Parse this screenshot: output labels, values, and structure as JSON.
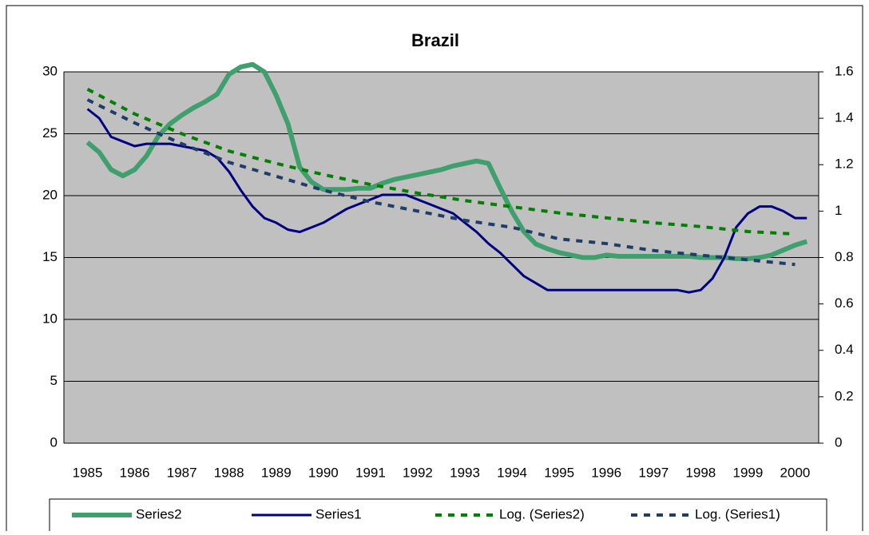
{
  "chart_data": {
    "type": "line",
    "title": "Brazil",
    "x": [
      1985,
      1985.25,
      1985.5,
      1985.75,
      1986,
      1986.25,
      1986.5,
      1986.75,
      1987,
      1987.25,
      1987.5,
      1987.75,
      1988,
      1988.25,
      1988.5,
      1988.75,
      1989,
      1989.25,
      1989.5,
      1989.75,
      1990,
      1990.25,
      1990.5,
      1990.75,
      1991,
      1991.25,
      1991.5,
      1991.75,
      1992,
      1992.25,
      1992.5,
      1992.75,
      1993,
      1993.25,
      1993.5,
      1993.75,
      1994,
      1994.25,
      1994.5,
      1994.75,
      1995,
      1995.25,
      1995.5,
      1995.75,
      1996,
      1996.25,
      1996.5,
      1996.75,
      1997,
      1997.25,
      1997.5,
      1997.75,
      1998,
      1998.25,
      1998.5,
      1998.75,
      1999,
      1999.25,
      1999.5,
      1999.75,
      2000,
      2000.25
    ],
    "xlim": [
      1984.5,
      2000.5
    ],
    "xticks": [
      1985,
      1986,
      1987,
      1988,
      1989,
      1990,
      1991,
      1992,
      1993,
      1994,
      1995,
      1996,
      1997,
      1998,
      1999,
      2000
    ],
    "ylim": [
      0,
      30
    ],
    "yticks": [
      0,
      5,
      10,
      15,
      20,
      25,
      30
    ],
    "y2lim": [
      0,
      1.6
    ],
    "y2ticks": [
      0,
      0.2,
      0.4,
      0.6,
      0.8,
      1,
      1.2,
      1.4,
      1.6
    ],
    "grid": true,
    "series": [
      {
        "name": "Series2",
        "color": "#3f9f6d",
        "values": [
          24.3,
          23.5,
          22.1,
          21.6,
          22.1,
          23.2,
          24.8,
          25.8,
          26.5,
          27.1,
          27.6,
          28.2,
          29.8,
          30.4,
          30.6,
          30.0,
          28.1,
          25.8,
          22.3,
          21.1,
          20.5,
          20.5,
          20.5,
          20.6,
          20.6,
          21.0,
          21.3,
          21.5,
          21.7,
          21.9,
          22.1,
          22.4,
          22.6,
          22.8,
          22.6,
          20.6,
          18.7,
          17.1,
          16.1,
          15.7,
          15.4,
          15.2,
          15.0,
          15.0,
          15.2,
          15.1,
          15.1,
          15.1,
          15.1,
          15.1,
          15.1,
          15.1,
          15.0,
          15.0,
          15.0,
          14.9,
          14.9,
          15.0,
          15.2,
          15.6,
          16.0,
          16.3
        ]
      },
      {
        "name": "Series1",
        "color": "#000080",
        "axis": "y2",
        "values": [
          1.44,
          1.4,
          1.32,
          1.3,
          1.28,
          1.29,
          1.29,
          1.29,
          1.28,
          1.27,
          1.26,
          1.23,
          1.17,
          1.09,
          1.02,
          0.97,
          0.95,
          0.92,
          0.91,
          0.93,
          0.95,
          0.98,
          1.01,
          1.03,
          1.05,
          1.07,
          1.07,
          1.07,
          1.05,
          1.03,
          1.01,
          0.99,
          0.95,
          0.91,
          0.86,
          0.82,
          0.77,
          0.72,
          0.69,
          0.66,
          0.66,
          0.66,
          0.66,
          0.66,
          0.66,
          0.66,
          0.66,
          0.66,
          0.66,
          0.66,
          0.66,
          0.65,
          0.66,
          0.71,
          0.8,
          0.93,
          0.99,
          1.02,
          1.02,
          1.0,
          0.97,
          0.97
        ]
      },
      {
        "name": "Log. (Series2)",
        "color": "#008000",
        "dashed": true,
        "x": [
          1985,
          1986,
          1987,
          1988,
          1989,
          1990,
          1991,
          1992,
          1993,
          1994,
          1995,
          1996,
          1997,
          1998,
          1999,
          2000
        ],
        "values": [
          28.6,
          26.6,
          25.0,
          23.6,
          22.6,
          21.7,
          20.9,
          20.2,
          19.6,
          19.1,
          18.6,
          18.2,
          17.8,
          17.5,
          17.1,
          16.9
        ]
      },
      {
        "name": "Log. (Series1)",
        "color": "#1f3d6b",
        "dashed": true,
        "axis": "y2",
        "x": [
          1985,
          1986,
          1987,
          1988,
          1989,
          1990,
          1991,
          1992,
          1993,
          1994,
          1995,
          1996,
          1997,
          1998,
          1999,
          2000
        ],
        "values": [
          1.48,
          1.38,
          1.29,
          1.21,
          1.15,
          1.09,
          1.04,
          1.0,
          0.96,
          0.93,
          0.88,
          0.86,
          0.83,
          0.81,
          0.79,
          0.77
        ]
      }
    ]
  }
}
